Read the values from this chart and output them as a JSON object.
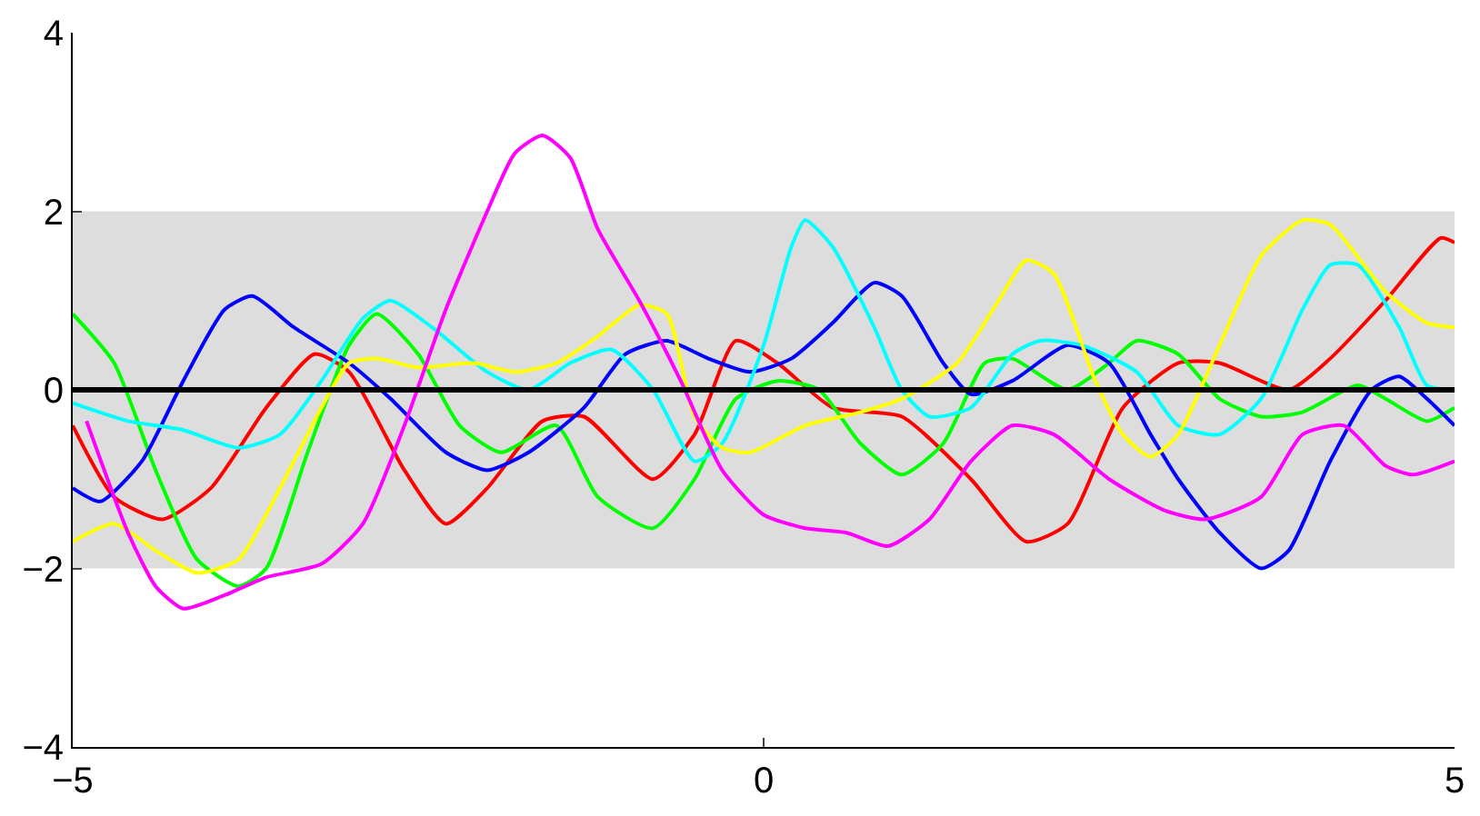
{
  "chart_data": {
    "type": "line",
    "xlim": [
      -5,
      5
    ],
    "ylim": [
      -4,
      4
    ],
    "xticks": [
      -5,
      0,
      5
    ],
    "yticks": [
      -4,
      -2,
      0,
      2,
      4
    ],
    "grid": false,
    "marker": "none",
    "line_style": "solid",
    "bands": [
      {
        "axis": "y",
        "from": -2,
        "to": 2,
        "color": "#dddddd"
      }
    ],
    "ref_lines": [
      {
        "axis": "y",
        "value": 0,
        "color": "#000000"
      }
    ],
    "series": [
      {
        "color": "#ff0000",
        "x": [
          -5,
          -4.7,
          -4.35,
          -4.0,
          -3.6,
          -3.25,
          -3.0,
          -2.6,
          -2.3,
          -2.0,
          -1.6,
          -1.3,
          -0.8,
          -0.5,
          -0.2,
          0.1,
          0.5,
          1.0,
          1.5,
          1.9,
          2.2,
          2.6,
          3.0,
          3.3,
          3.8,
          4.1,
          4.5,
          4.9,
          5.0
        ],
        "values": [
          -0.4,
          -1.2,
          -1.45,
          -1.1,
          -0.2,
          0.4,
          0.2,
          -0.9,
          -1.5,
          -1.1,
          -0.35,
          -0.3,
          -1.0,
          -0.5,
          0.55,
          0.3,
          -0.2,
          -0.3,
          -1.0,
          -1.7,
          -1.5,
          -0.2,
          0.3,
          0.3,
          0.0,
          0.35,
          1.0,
          1.7,
          1.65
        ]
      },
      {
        "color": "#00ff00",
        "x": [
          -5,
          -4.7,
          -4.4,
          -4.1,
          -3.8,
          -3.6,
          -3.3,
          -3.0,
          -2.8,
          -2.5,
          -2.2,
          -1.9,
          -1.5,
          -1.2,
          -0.8,
          -0.5,
          -0.2,
          0.1,
          0.4,
          0.7,
          1.0,
          1.3,
          1.6,
          1.8,
          2.2,
          2.5,
          2.7,
          3.0,
          3.3,
          3.6,
          3.9,
          4.3,
          4.5,
          4.8,
          5.0
        ],
        "values": [
          0.85,
          0.3,
          -0.9,
          -1.9,
          -2.2,
          -2.0,
          -0.7,
          0.5,
          0.85,
          0.4,
          -0.4,
          -0.7,
          -0.4,
          -1.2,
          -1.55,
          -1.0,
          -0.1,
          0.1,
          0.0,
          -0.6,
          -0.95,
          -0.6,
          0.3,
          0.35,
          0.0,
          0.3,
          0.55,
          0.4,
          -0.1,
          -0.3,
          -0.25,
          0.05,
          -0.1,
          -0.35,
          -0.2
        ]
      },
      {
        "color": "#0000ff",
        "x": [
          -5,
          -4.8,
          -4.5,
          -4.2,
          -3.9,
          -3.7,
          -3.4,
          -3.0,
          -2.7,
          -2.3,
          -2.0,
          -1.7,
          -1.3,
          -1.0,
          -0.7,
          -0.4,
          -0.1,
          0.2,
          0.5,
          0.8,
          1.0,
          1.3,
          1.5,
          1.8,
          2.2,
          2.5,
          2.8,
          3.0,
          3.3,
          3.6,
          3.8,
          4.1,
          4.4,
          4.6,
          4.8,
          5.0
        ],
        "values": [
          -1.1,
          -1.25,
          -0.8,
          0.1,
          0.9,
          1.05,
          0.7,
          0.3,
          -0.1,
          -0.7,
          -0.9,
          -0.7,
          -0.2,
          0.4,
          0.55,
          0.35,
          0.2,
          0.35,
          0.75,
          1.2,
          1.05,
          0.3,
          -0.05,
          0.1,
          0.5,
          0.3,
          -0.5,
          -1.0,
          -1.6,
          -2.0,
          -1.8,
          -0.8,
          0.0,
          0.15,
          -0.1,
          -0.4
        ]
      },
      {
        "color": "#00ffff",
        "x": [
          -5,
          -4.6,
          -4.2,
          -3.8,
          -3.5,
          -3.2,
          -2.9,
          -2.7,
          -2.4,
          -2.0,
          -1.7,
          -1.4,
          -1.1,
          -0.8,
          -0.5,
          -0.3,
          0.0,
          0.2,
          0.3,
          0.5,
          0.8,
          1.0,
          1.2,
          1.5,
          1.8,
          2.0,
          2.3,
          2.7,
          3.0,
          3.3,
          3.6,
          3.9,
          4.1,
          4.3,
          4.6,
          4.8,
          5.0
        ],
        "values": [
          -0.15,
          -0.35,
          -0.45,
          -0.65,
          -0.5,
          0.1,
          0.8,
          1.0,
          0.7,
          0.2,
          0.0,
          0.3,
          0.45,
          0.0,
          -0.8,
          -0.6,
          0.5,
          1.6,
          1.9,
          1.6,
          0.7,
          0.0,
          -0.3,
          -0.2,
          0.4,
          0.55,
          0.5,
          0.2,
          -0.4,
          -0.5,
          -0.1,
          0.9,
          1.4,
          1.4,
          0.7,
          0.05,
          0.0
        ]
      },
      {
        "color": "#ffff00",
        "x": [
          -5,
          -4.7,
          -4.4,
          -4.1,
          -3.8,
          -3.5,
          -3.2,
          -3.0,
          -2.8,
          -2.5,
          -2.1,
          -1.8,
          -1.5,
          -1.2,
          -0.9,
          -0.7,
          -0.5,
          -0.3,
          -0.1,
          0.3,
          0.7,
          1.0,
          1.4,
          1.7,
          1.9,
          2.1,
          2.4,
          2.6,
          2.8,
          3.0,
          3.3,
          3.6,
          3.9,
          4.1,
          4.5,
          4.8,
          5.0
        ],
        "values": [
          -1.7,
          -1.5,
          -1.8,
          -2.05,
          -1.9,
          -1.1,
          -0.2,
          0.3,
          0.35,
          0.25,
          0.3,
          0.2,
          0.3,
          0.6,
          0.95,
          0.85,
          -0.3,
          -0.65,
          -0.7,
          -0.4,
          -0.25,
          -0.1,
          0.3,
          1.0,
          1.45,
          1.3,
          0.1,
          -0.5,
          -0.75,
          -0.5,
          0.5,
          1.5,
          1.9,
          1.85,
          1.1,
          0.75,
          0.7
        ]
      },
      {
        "color": "#ff00ff",
        "x": [
          -4.9,
          -4.6,
          -4.4,
          -4.2,
          -3.9,
          -3.6,
          -3.2,
          -2.9,
          -2.6,
          -2.3,
          -2.0,
          -1.8,
          -1.6,
          -1.4,
          -1.2,
          -0.9,
          -0.6,
          -0.3,
          0.0,
          0.3,
          0.6,
          0.9,
          1.2,
          1.5,
          1.8,
          2.1,
          2.5,
          2.9,
          3.2,
          3.6,
          3.9,
          4.2,
          4.5,
          4.7,
          5.0
        ],
        "values": [
          -0.35,
          -1.6,
          -2.2,
          -2.45,
          -2.3,
          -2.1,
          -1.95,
          -1.5,
          -0.4,
          0.9,
          2.0,
          2.65,
          2.85,
          2.6,
          1.8,
          1.0,
          0.1,
          -0.9,
          -1.4,
          -1.55,
          -1.6,
          -1.75,
          -1.45,
          -0.8,
          -0.4,
          -0.5,
          -1.0,
          -1.35,
          -1.45,
          -1.2,
          -0.5,
          -0.4,
          -0.85,
          -0.95,
          -0.8
        ]
      }
    ]
  }
}
